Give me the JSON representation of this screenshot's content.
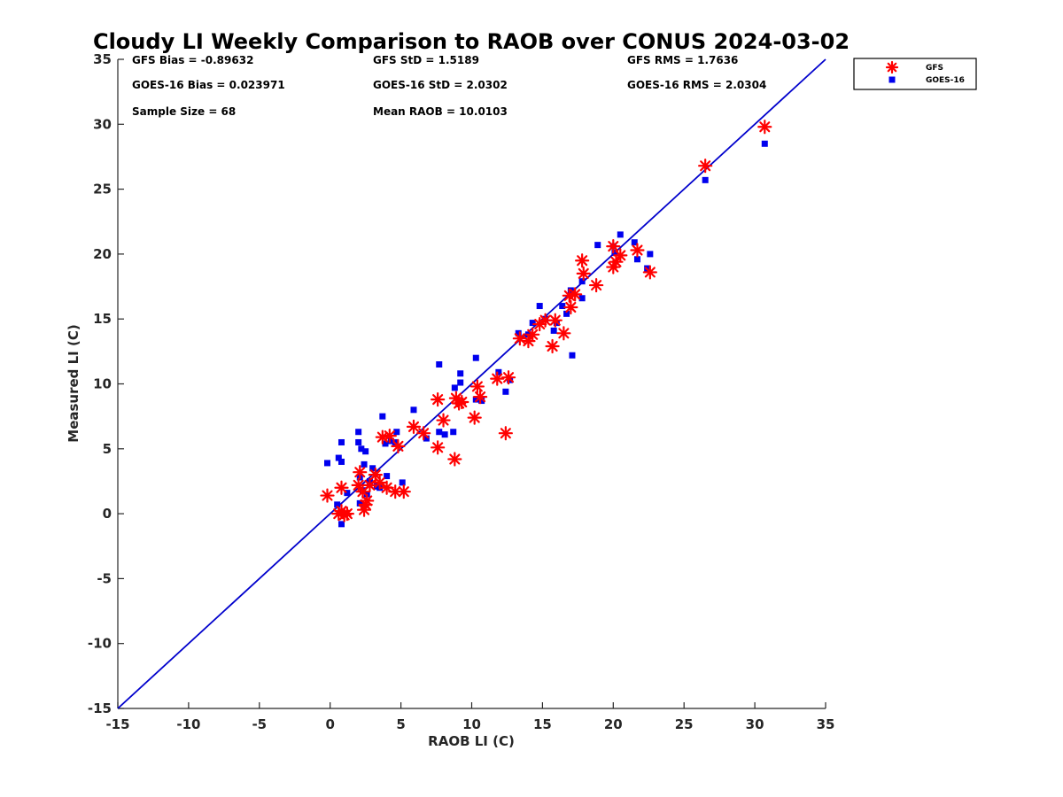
{
  "chart_data": {
    "type": "scatter",
    "title": "Cloudy LI Weekly Comparison to RAOB over CONUS 2024-03-02",
    "xlabel": "RAOB LI (C)",
    "ylabel": "Measured LI (C)",
    "xlim": [
      -15,
      35
    ],
    "ylim": [
      -15,
      35
    ],
    "xticks": [
      "-15",
      "-10",
      "-5",
      "0",
      "5",
      "10",
      "15",
      "20",
      "25",
      "30",
      "35"
    ],
    "yticks": [
      "-15",
      "-10",
      "-5",
      "0",
      "5",
      "10",
      "15",
      "20",
      "25",
      "30",
      "35"
    ],
    "reference_line": {
      "type": "1:1",
      "color": "#0000cc"
    },
    "grid": false,
    "legend_placement": "outside top-right",
    "stats": {
      "gfs_bias": "GFS Bias = -0.89632",
      "goes_bias": "GOES-16 Bias = 0.023971",
      "sample_size": "Sample Size = 68",
      "gfs_std": "GFS StD = 1.5189",
      "goes_std": "GOES-16 StD = 2.0302",
      "mean_raob": "Mean RAOB = 10.0103",
      "gfs_rms": "GFS RMS = 1.7636",
      "goes_rms": "GOES-16 RMS = 2.0304"
    },
    "series": [
      {
        "name": "GFS",
        "marker": "asterisk",
        "color": "#ff0000",
        "points": [
          [
            -0.2,
            1.4
          ],
          [
            0.6,
            0.0
          ],
          [
            0.8,
            2.0
          ],
          [
            0.8,
            0.2
          ],
          [
            1.0,
            -0.1
          ],
          [
            1.2,
            0.0
          ],
          [
            2.0,
            2.2
          ],
          [
            2.1,
            3.2
          ],
          [
            2.3,
            1.7
          ],
          [
            2.4,
            0.3
          ],
          [
            2.5,
            0.7
          ],
          [
            2.6,
            1.0
          ],
          [
            2.8,
            2.2
          ],
          [
            3.2,
            3.0
          ],
          [
            3.5,
            2.4
          ],
          [
            3.7,
            5.9
          ],
          [
            4.0,
            2.0
          ],
          [
            4.2,
            6.0
          ],
          [
            4.6,
            1.7
          ],
          [
            4.8,
            5.2
          ],
          [
            5.2,
            1.7
          ],
          [
            5.9,
            6.7
          ],
          [
            6.6,
            6.2
          ],
          [
            7.6,
            8.8
          ],
          [
            7.6,
            5.1
          ],
          [
            8.0,
            7.2
          ],
          [
            8.8,
            4.2
          ],
          [
            8.9,
            8.9
          ],
          [
            9.1,
            8.5
          ],
          [
            9.3,
            8.6
          ],
          [
            10.2,
            7.4
          ],
          [
            10.4,
            9.8
          ],
          [
            10.6,
            9.0
          ],
          [
            11.8,
            10.4
          ],
          [
            12.4,
            6.2
          ],
          [
            12.6,
            10.5
          ],
          [
            13.4,
            13.5
          ],
          [
            14.0,
            13.3
          ],
          [
            14.3,
            13.8
          ],
          [
            14.8,
            14.6
          ],
          [
            15.2,
            14.9
          ],
          [
            15.7,
            12.9
          ],
          [
            15.9,
            14.9
          ],
          [
            16.5,
            13.9
          ],
          [
            16.9,
            16.8
          ],
          [
            17.0,
            15.9
          ],
          [
            17.3,
            16.9
          ],
          [
            17.8,
            19.5
          ],
          [
            17.9,
            18.5
          ],
          [
            18.8,
            17.6
          ],
          [
            20.0,
            19.0
          ],
          [
            20.0,
            20.6
          ],
          [
            20.2,
            19.4
          ],
          [
            20.5,
            19.9
          ],
          [
            21.7,
            20.3
          ],
          [
            22.6,
            18.6
          ],
          [
            26.5,
            26.8
          ],
          [
            30.7,
            29.8
          ]
        ]
      },
      {
        "name": "GOES-16",
        "marker": "square",
        "color": "#0000ee",
        "points": [
          [
            -0.2,
            3.9
          ],
          [
            0.5,
            0.7
          ],
          [
            0.6,
            4.3
          ],
          [
            0.8,
            5.5
          ],
          [
            0.8,
            4.0
          ],
          [
            0.8,
            -0.8
          ],
          [
            1.2,
            1.6
          ],
          [
            2.0,
            6.3
          ],
          [
            2.0,
            5.5
          ],
          [
            2.1,
            2.8
          ],
          [
            2.1,
            0.8
          ],
          [
            2.2,
            5.0
          ],
          [
            2.3,
            1.8
          ],
          [
            2.4,
            3.8
          ],
          [
            2.5,
            4.8
          ],
          [
            2.6,
            1.5
          ],
          [
            2.8,
            2.5
          ],
          [
            3.0,
            3.5
          ],
          [
            3.3,
            2.1
          ],
          [
            3.5,
            2.0
          ],
          [
            3.7,
            7.5
          ],
          [
            3.9,
            5.4
          ],
          [
            4.0,
            2.9
          ],
          [
            4.3,
            5.6
          ],
          [
            4.6,
            5.5
          ],
          [
            4.7,
            6.3
          ],
          [
            5.1,
            2.4
          ],
          [
            5.9,
            8.0
          ],
          [
            6.8,
            5.8
          ],
          [
            7.7,
            11.5
          ],
          [
            7.7,
            6.3
          ],
          [
            8.1,
            6.1
          ],
          [
            8.7,
            6.3
          ],
          [
            8.8,
            9.7
          ],
          [
            9.2,
            10.8
          ],
          [
            9.2,
            10.1
          ],
          [
            10.3,
            8.8
          ],
          [
            10.3,
            12.0
          ],
          [
            10.7,
            8.7
          ],
          [
            11.9,
            10.9
          ],
          [
            12.4,
            9.4
          ],
          [
            12.7,
            10.3
          ],
          [
            13.3,
            13.9
          ],
          [
            14.0,
            13.8
          ],
          [
            14.3,
            14.7
          ],
          [
            14.8,
            16.0
          ],
          [
            15.2,
            15.0
          ],
          [
            15.8,
            14.1
          ],
          [
            16.0,
            14.7
          ],
          [
            16.4,
            16.0
          ],
          [
            16.7,
            15.4
          ],
          [
            17.0,
            17.2
          ],
          [
            17.1,
            12.2
          ],
          [
            17.8,
            17.9
          ],
          [
            17.8,
            16.6
          ],
          [
            18.9,
            20.7
          ],
          [
            20.0,
            20.6
          ],
          [
            20.1,
            20.1
          ],
          [
            20.5,
            21.5
          ],
          [
            21.5,
            20.9
          ],
          [
            21.7,
            19.6
          ],
          [
            22.4,
            18.9
          ],
          [
            22.6,
            20.0
          ],
          [
            26.5,
            25.7
          ],
          [
            30.7,
            28.5
          ]
        ]
      }
    ]
  }
}
